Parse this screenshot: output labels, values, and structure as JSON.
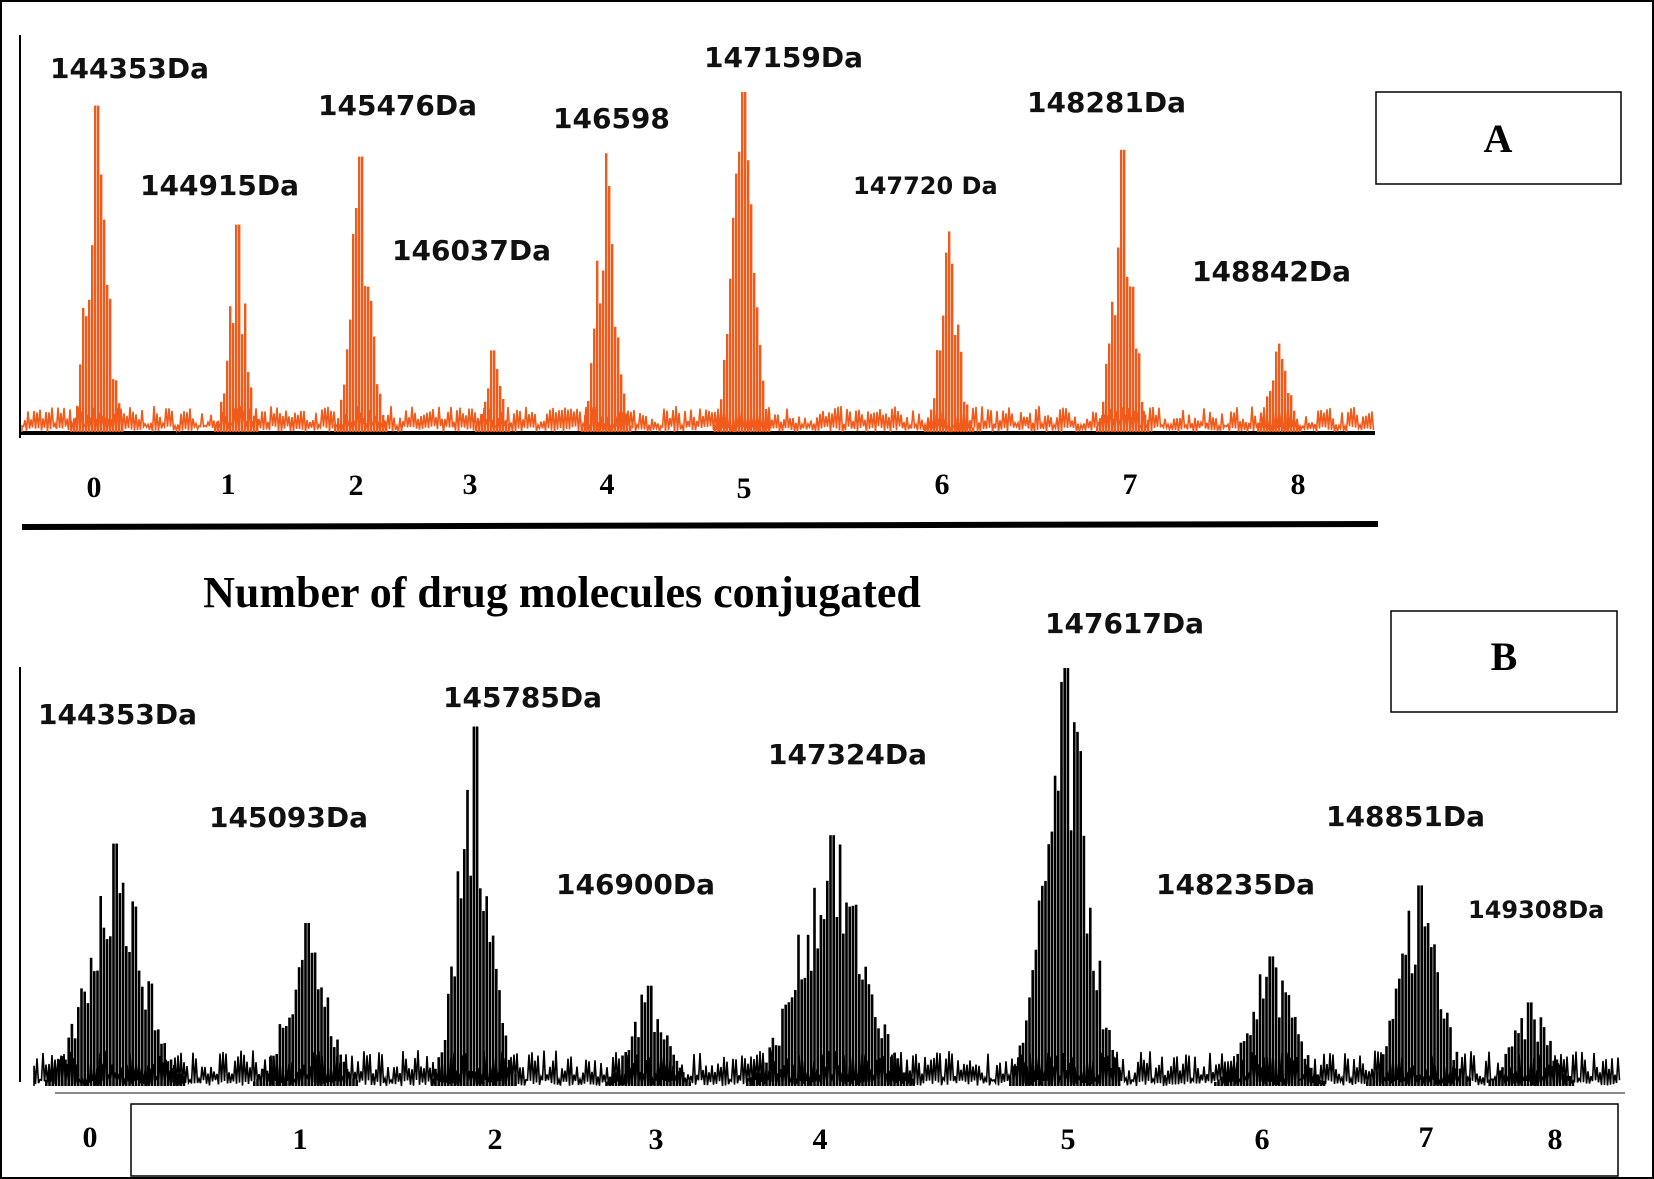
{
  "xlabel": "Number of drug molecules conjugated",
  "chart_data": [
    {
      "type": "bar",
      "panel": "A",
      "color": "#f05a1a",
      "xlabel": "Number of drug molecules conjugated",
      "categories": [
        "0",
        "1",
        "2",
        "3",
        "4",
        "5",
        "6",
        "7",
        "8"
      ],
      "peak_labels": [
        "144353Da",
        "144915Da",
        "145476Da",
        "146037Da",
        "146598",
        "147159Da",
        "147720 Da",
        "148281Da",
        "148842Da"
      ],
      "values": [
        0.96,
        0.61,
        0.81,
        0.24,
        0.82,
        1.0,
        0.59,
        0.83,
        0.26
      ]
    },
    {
      "type": "bar",
      "panel": "B",
      "color": "#000000",
      "xlabel": "",
      "categories": [
        "0",
        "1",
        "2",
        "3",
        "4",
        "5",
        "6",
        "7",
        "8"
      ],
      "peak_labels": [
        "144353Da",
        "145093Da",
        "145785Da",
        "146900Da",
        "147324Da",
        "147617Da",
        "148235Da",
        "148851Da",
        "149308Da"
      ],
      "values": [
        0.58,
        0.39,
        0.86,
        0.24,
        0.6,
        1.0,
        0.31,
        0.48,
        0.2
      ]
    }
  ]
}
